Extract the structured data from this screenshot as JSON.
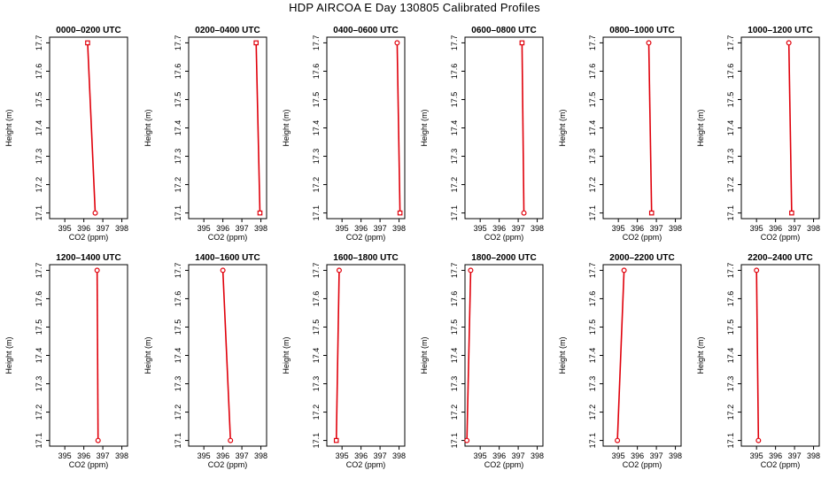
{
  "page_title": "HDP AIRCOA E  Day 130805  Calibrated Profiles",
  "style": {
    "line_color": "#e0000b",
    "axis_color": "#000000"
  },
  "chart_data": [
    {
      "type": "line",
      "title": "0000–0200 UTC",
      "xlabel": "CO2 (ppm)",
      "ylabel": "Height (m)",
      "xlim": [
        394.2,
        398.3
      ],
      "ylim": [
        17.08,
        17.72
      ],
      "xticks": [
        395,
        396,
        397,
        398
      ],
      "yticks": [
        17.1,
        17.2,
        17.3,
        17.4,
        17.5,
        17.6,
        17.7
      ],
      "grid": false,
      "points": [
        {
          "x": 396.2,
          "y": 17.7,
          "marker": "square"
        },
        {
          "x": 396.6,
          "y": 17.1,
          "marker": "circle"
        }
      ]
    },
    {
      "type": "line",
      "title": "0200–0400 UTC",
      "xlabel": "CO2 (ppm)",
      "ylabel": "Height (m)",
      "xlim": [
        394.2,
        398.3
      ],
      "ylim": [
        17.08,
        17.72
      ],
      "xticks": [
        395,
        396,
        397,
        398
      ],
      "yticks": [
        17.1,
        17.2,
        17.3,
        17.4,
        17.5,
        17.6,
        17.7
      ],
      "grid": false,
      "points": [
        {
          "x": 397.75,
          "y": 17.7,
          "marker": "square"
        },
        {
          "x": 397.95,
          "y": 17.1,
          "marker": "square"
        }
      ]
    },
    {
      "type": "line",
      "title": "0400–0600 UTC",
      "xlabel": "CO2 (ppm)",
      "ylabel": "Height (m)",
      "xlim": [
        394.2,
        398.3
      ],
      "ylim": [
        17.08,
        17.72
      ],
      "xticks": [
        395,
        396,
        397,
        398
      ],
      "yticks": [
        17.1,
        17.2,
        17.3,
        17.4,
        17.5,
        17.6,
        17.7
      ],
      "grid": false,
      "points": [
        {
          "x": 397.9,
          "y": 17.7,
          "marker": "circle"
        },
        {
          "x": 398.05,
          "y": 17.1,
          "marker": "square"
        }
      ]
    },
    {
      "type": "line",
      "title": "0600–0800 UTC",
      "xlabel": "CO2 (ppm)",
      "ylabel": "Height (m)",
      "xlim": [
        394.2,
        398.3
      ],
      "ylim": [
        17.08,
        17.72
      ],
      "xticks": [
        395,
        396,
        397,
        398
      ],
      "yticks": [
        17.1,
        17.2,
        17.3,
        17.4,
        17.5,
        17.6,
        17.7
      ],
      "grid": false,
      "points": [
        {
          "x": 397.2,
          "y": 17.7,
          "marker": "square"
        },
        {
          "x": 397.3,
          "y": 17.1,
          "marker": "circle"
        }
      ]
    },
    {
      "type": "line",
      "title": "0800–1000 UTC",
      "xlabel": "CO2 (ppm)",
      "ylabel": "Height (m)",
      "xlim": [
        394.2,
        398.3
      ],
      "ylim": [
        17.08,
        17.72
      ],
      "xticks": [
        395,
        396,
        397,
        398
      ],
      "yticks": [
        17.1,
        17.2,
        17.3,
        17.4,
        17.5,
        17.6,
        17.7
      ],
      "grid": false,
      "points": [
        {
          "x": 396.6,
          "y": 17.7,
          "marker": "circle"
        },
        {
          "x": 396.75,
          "y": 17.1,
          "marker": "square"
        }
      ]
    },
    {
      "type": "line",
      "title": "1000–1200 UTC",
      "xlabel": "CO2 (ppm)",
      "ylabel": "Height (m)",
      "xlim": [
        394.2,
        398.3
      ],
      "ylim": [
        17.08,
        17.72
      ],
      "xticks": [
        395,
        396,
        397,
        398
      ],
      "yticks": [
        17.1,
        17.2,
        17.3,
        17.4,
        17.5,
        17.6,
        17.7
      ],
      "grid": false,
      "points": [
        {
          "x": 396.7,
          "y": 17.7,
          "marker": "circle"
        },
        {
          "x": 396.85,
          "y": 17.1,
          "marker": "square"
        }
      ]
    },
    {
      "type": "line",
      "title": "1200–1400 UTC",
      "xlabel": "CO2 (ppm)",
      "ylabel": "Height (m)",
      "xlim": [
        394.2,
        398.3
      ],
      "ylim": [
        17.08,
        17.72
      ],
      "xticks": [
        395,
        396,
        397,
        398
      ],
      "yticks": [
        17.1,
        17.2,
        17.3,
        17.4,
        17.5,
        17.6,
        17.7
      ],
      "grid": false,
      "points": [
        {
          "x": 396.7,
          "y": 17.7,
          "marker": "circle"
        },
        {
          "x": 396.75,
          "y": 17.1,
          "marker": "circle"
        }
      ]
    },
    {
      "type": "line",
      "title": "1400–1600 UTC",
      "xlabel": "CO2 (ppm)",
      "ylabel": "Height (m)",
      "xlim": [
        394.2,
        398.3
      ],
      "ylim": [
        17.08,
        17.72
      ],
      "xticks": [
        395,
        396,
        397,
        398
      ],
      "yticks": [
        17.1,
        17.2,
        17.3,
        17.4,
        17.5,
        17.6,
        17.7
      ],
      "grid": false,
      "points": [
        {
          "x": 396.0,
          "y": 17.7,
          "marker": "circle"
        },
        {
          "x": 396.4,
          "y": 17.1,
          "marker": "circle"
        }
      ]
    },
    {
      "type": "line",
      "title": "1600–1800 UTC",
      "xlabel": "CO2 (ppm)",
      "ylabel": "Height (m)",
      "xlim": [
        394.2,
        398.3
      ],
      "ylim": [
        17.08,
        17.72
      ],
      "xticks": [
        395,
        396,
        397,
        398
      ],
      "yticks": [
        17.1,
        17.2,
        17.3,
        17.4,
        17.5,
        17.6,
        17.7
      ],
      "grid": false,
      "points": [
        {
          "x": 394.85,
          "y": 17.7,
          "marker": "circle"
        },
        {
          "x": 394.7,
          "y": 17.1,
          "marker": "square"
        }
      ]
    },
    {
      "type": "line",
      "title": "1800–2000 UTC",
      "xlabel": "CO2 (ppm)",
      "ylabel": "Height (m)",
      "xlim": [
        394.2,
        398.3
      ],
      "ylim": [
        17.08,
        17.72
      ],
      "xticks": [
        395,
        396,
        397,
        398
      ],
      "yticks": [
        17.1,
        17.2,
        17.3,
        17.4,
        17.5,
        17.6,
        17.7
      ],
      "grid": false,
      "points": [
        {
          "x": 394.5,
          "y": 17.7,
          "marker": "circle"
        },
        {
          "x": 394.3,
          "y": 17.1,
          "marker": "circle"
        }
      ]
    },
    {
      "type": "line",
      "title": "2000–2200 UTC",
      "xlabel": "CO2 (ppm)",
      "ylabel": "Height (m)",
      "xlim": [
        394.2,
        398.3
      ],
      "ylim": [
        17.08,
        17.72
      ],
      "xticks": [
        395,
        396,
        397,
        398
      ],
      "yticks": [
        17.1,
        17.2,
        17.3,
        17.4,
        17.5,
        17.6,
        17.7
      ],
      "grid": false,
      "points": [
        {
          "x": 395.3,
          "y": 17.7,
          "marker": "circle"
        },
        {
          "x": 394.95,
          "y": 17.1,
          "marker": "circle"
        }
      ]
    },
    {
      "type": "line",
      "title": "2200–2400 UTC",
      "xlabel": "CO2 (ppm)",
      "ylabel": "Height (m)",
      "xlim": [
        394.2,
        398.3
      ],
      "ylim": [
        17.08,
        17.72
      ],
      "xticks": [
        395,
        396,
        397,
        398
      ],
      "yticks": [
        17.1,
        17.2,
        17.3,
        17.4,
        17.5,
        17.6,
        17.7
      ],
      "grid": false,
      "points": [
        {
          "x": 395.0,
          "y": 17.7,
          "marker": "circle"
        },
        {
          "x": 395.1,
          "y": 17.1,
          "marker": "circle"
        }
      ]
    }
  ]
}
